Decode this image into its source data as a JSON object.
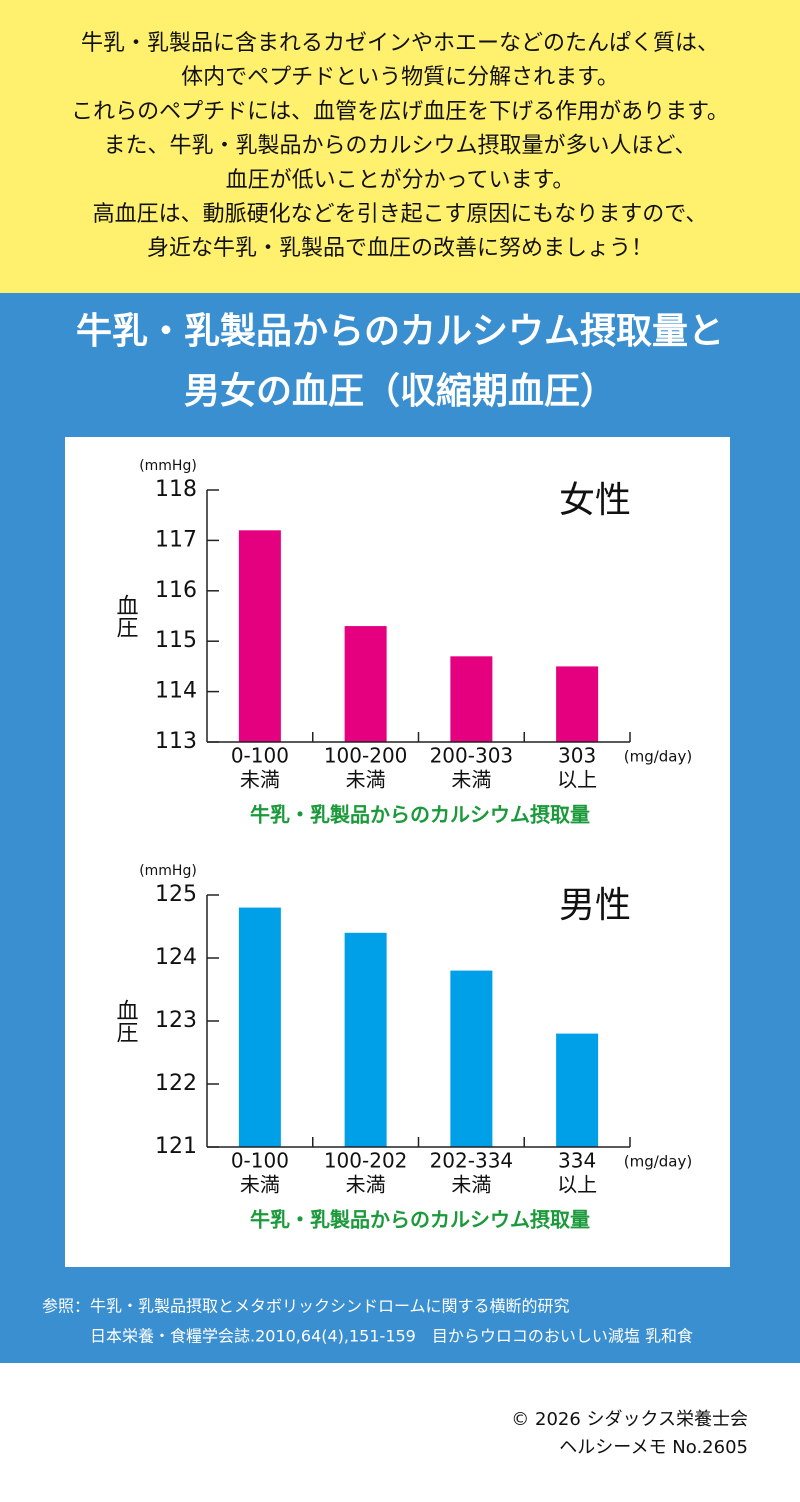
{
  "header": {
    "lines": [
      "牛乳・乳製品に含まれるカゼインやホエーなどのたんぱく質は、",
      "体内でペプチドという物質に分解されます。",
      "これらのペプチドには、血管を広げ血圧を下げる作用があります。",
      "また、牛乳・乳製品からのカルシウム摂取量が多い人ほど、",
      "血圧が低いことが分かっています。",
      "高血圧は、動脈硬化などを引き起こす原因にもなりますので、",
      "身近な牛乳・乳製品で血圧の改善に努めましょう！"
    ]
  },
  "title": [
    "牛乳・乳製品からのカルシウム摂取量と",
    "男女の血圧（収縮期血圧）"
  ],
  "chart_data": [
    {
      "type": "bar",
      "label": "女性",
      "y_unit": "(mmHg)",
      "ylabel": "血圧",
      "x_unit": "(mg/day)",
      "xlabel": "牛乳・乳製品からのカルシウム摂取量",
      "categories": [
        [
          "0-100",
          "未満"
        ],
        [
          "100-200",
          "未満"
        ],
        [
          "200-303",
          "未満"
        ],
        [
          "303",
          "以上"
        ]
      ],
      "values": [
        117.2,
        115.3,
        114.7,
        114.5
      ],
      "color": "#e4007f",
      "ylim": [
        113,
        118
      ],
      "yticks": [
        113,
        114,
        115,
        116,
        117,
        118
      ]
    },
    {
      "type": "bar",
      "label": "男性",
      "y_unit": "(mmHg)",
      "ylabel": "血圧",
      "x_unit": "(mg/day)",
      "xlabel": "牛乳・乳製品からのカルシウム摂取量",
      "categories": [
        [
          "0-100",
          "未満"
        ],
        [
          "100-202",
          "未満"
        ],
        [
          "202-334",
          "未満"
        ],
        [
          "334",
          "以上"
        ]
      ],
      "values": [
        124.8,
        124.4,
        123.8,
        122.8
      ],
      "color": "#00a0e9",
      "ylim": [
        121,
        125
      ],
      "yticks": [
        121,
        122,
        123,
        124,
        125
      ]
    }
  ],
  "reference": [
    "参照：牛乳・乳製品摂取とメタボリックシンドロームに関する横断的研究",
    "日本栄養・食糧学会誌.2010,64(4),151-159　目からウロコのおいしい減塩 乳和食"
  ],
  "footer": [
    "© 2026 シダックス栄養士会",
    "ヘルシーメモ  No.2605"
  ]
}
